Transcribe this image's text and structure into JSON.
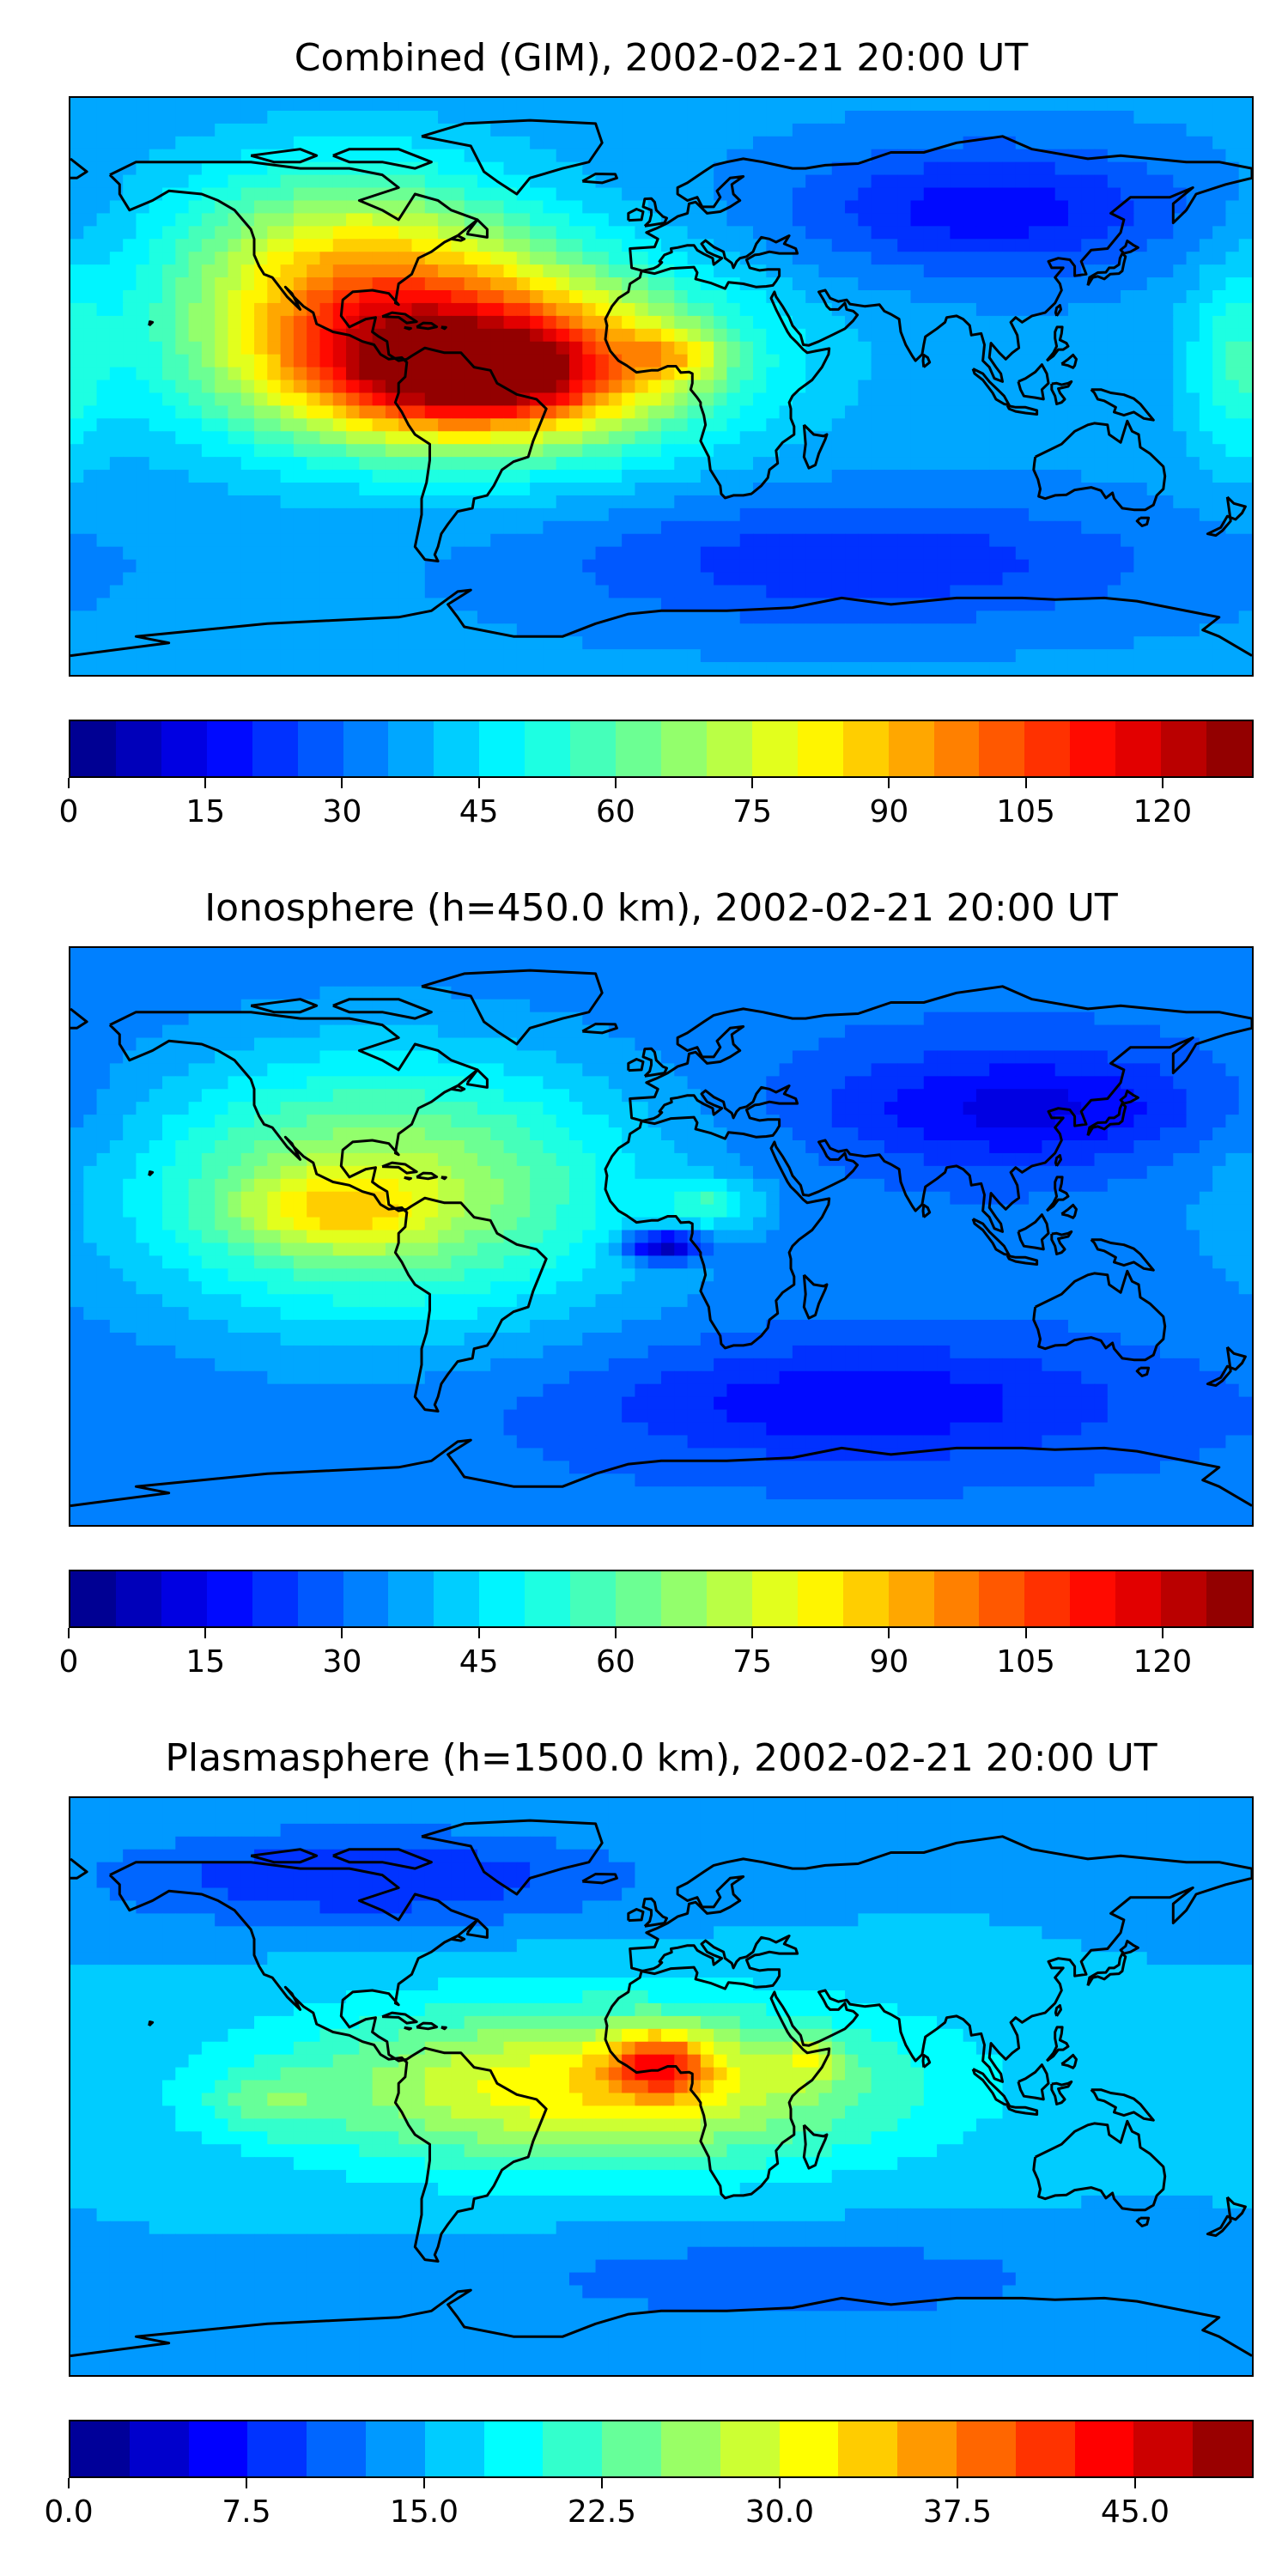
{
  "panels": [
    {
      "id": "combined",
      "title": "Combined (GIM), 2002-02-21 20:00 UT",
      "colorbar": {
        "min": 0,
        "max": 130,
        "levels": 26,
        "ticks": [
          "0",
          "15",
          "30",
          "45",
          "60",
          "75",
          "90",
          "105",
          "120"
        ],
        "tick_values": [
          0,
          15,
          30,
          45,
          60,
          75,
          90,
          105,
          120
        ]
      },
      "field": {
        "background": 0.28,
        "blobs": [
          {
            "lon": -60,
            "lat": 8,
            "rlon": 70,
            "rlat": 28,
            "v": 0.62
          },
          {
            "lon": -55,
            "lat": 3,
            "rlon": 40,
            "rlat": 14,
            "v": 0.25
          },
          {
            "lon": -95,
            "lat": 40,
            "rlon": 55,
            "rlat": 30,
            "v": 0.3
          },
          {
            "lon": 5,
            "lat": 10,
            "rlon": 14,
            "rlat": 8,
            "v": 0.15
          },
          {
            "lon": 100,
            "lat": 55,
            "rlon": 60,
            "rlat": 20,
            "v": -0.15
          },
          {
            "lon": 60,
            "lat": -55,
            "rlon": 90,
            "rlat": 20,
            "v": -0.12
          },
          {
            "lon": 175,
            "lat": 5,
            "rlon": 15,
            "rlat": 30,
            "v": 0.12
          }
        ]
      }
    },
    {
      "id": "ionosphere",
      "title": "Ionosphere  (h=450.0 km), 2002-02-21 20:00 UT",
      "colorbar": {
        "min": 0,
        "max": 130,
        "levels": 26,
        "ticks": [
          "0",
          "15",
          "30",
          "45",
          "60",
          "75",
          "90",
          "105",
          "120"
        ],
        "tick_values": [
          0,
          15,
          30,
          45,
          60,
          75,
          90,
          105,
          120
        ]
      },
      "field": {
        "background": 0.24,
        "blobs": [
          {
            "lon": -85,
            "lat": 15,
            "rlon": 75,
            "rlat": 40,
            "v": 0.32
          },
          {
            "lon": -100,
            "lat": 8,
            "rlon": 30,
            "rlat": 12,
            "v": 0.15
          },
          {
            "lon": 15,
            "lat": 10,
            "rlon": 14,
            "rlat": 7,
            "v": 0.14
          },
          {
            "lon": 0,
            "lat": -3,
            "rlon": 12,
            "rlat": 5,
            "v": -0.25
          },
          {
            "lon": 110,
            "lat": 40,
            "rlon": 60,
            "rlat": 18,
            "v": -0.14
          },
          {
            "lon": 60,
            "lat": -52,
            "rlon": 80,
            "rlat": 18,
            "v": -0.12
          }
        ]
      }
    },
    {
      "id": "plasmasphere",
      "title": "Plasmasphere (h=1500.0 km), 2002-02-21 20:00 UT",
      "colorbar": {
        "min": 0,
        "max": 50,
        "levels": 20,
        "ticks": [
          "0.0",
          "7.5",
          "15.0",
          "22.5",
          "30.0",
          "37.5",
          "45.0"
        ],
        "tick_values": [
          0,
          7.5,
          15,
          22.5,
          30,
          37.5,
          45
        ]
      },
      "field": {
        "background": 0.3,
        "blobs": [
          {
            "lon": -20,
            "lat": 0,
            "rlon": 90,
            "rlat": 25,
            "v": 0.35
          },
          {
            "lon": 0,
            "lat": 7,
            "rlon": 15,
            "rlat": 10,
            "v": 0.3
          },
          {
            "lon": -120,
            "lat": -5,
            "rlon": 20,
            "rlat": 10,
            "v": 0.1
          },
          {
            "lon": 45,
            "lat": 8,
            "rlon": 10,
            "rlat": 8,
            "v": 0.12
          },
          {
            "lon": -90,
            "lat": 65,
            "rlon": 80,
            "rlat": 15,
            "v": -0.15
          },
          {
            "lon": 40,
            "lat": -60,
            "rlon": 100,
            "rlat": 15,
            "v": -0.08
          }
        ]
      }
    }
  ],
  "colors": {
    "jet": [
      "#000080",
      "#0000b2",
      "#0000e5",
      "#0018ff",
      "#0048ff",
      "#0078ff",
      "#00a8ff",
      "#00d8ff",
      "#2effc8",
      "#5effa0",
      "#8eff70",
      "#beff40",
      "#eeff10",
      "#ffd000",
      "#ffa000",
      "#ff7000",
      "#ff4000",
      "#ff1000",
      "#cd0000",
      "#800000"
    ],
    "coastline": "#000000"
  }
}
